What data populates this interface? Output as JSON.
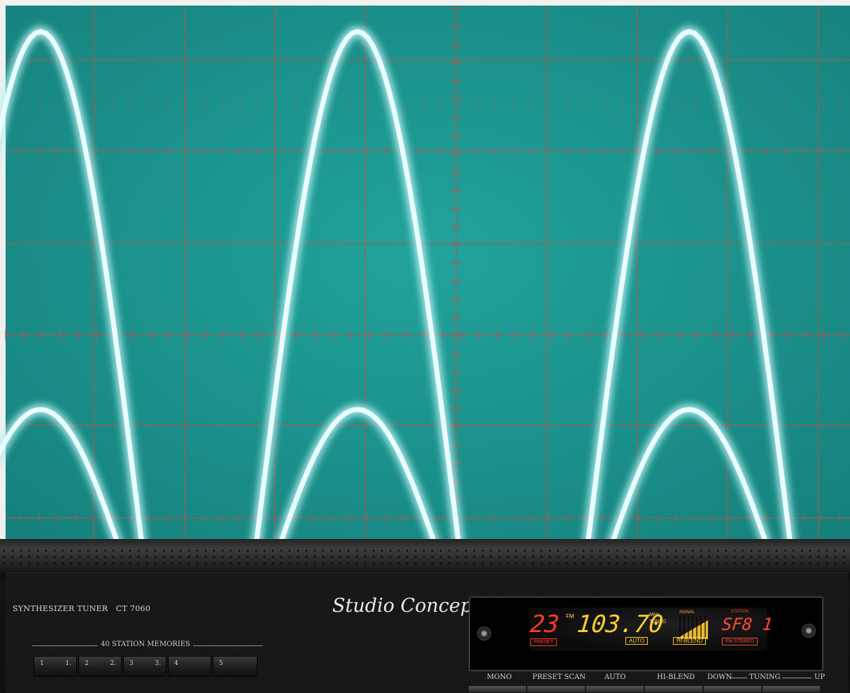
{
  "image": {
    "scope_colors": {
      "screen": "#1f9a93",
      "grid": "#c0504a",
      "trace": "#eafcff",
      "glow": "#b5f0f2"
    }
  },
  "tuner": {
    "model": "SYNTHESIZER TUNER   CT 7060",
    "brand": "Studio Concept",
    "memories_label": "40 STATION MEMORIES",
    "memory_buttons": [
      {
        "label_a": "1",
        "label_b": "1."
      },
      {
        "label_a": "2",
        "label_b": "2."
      },
      {
        "label_a": "3",
        "label_b": "3."
      },
      {
        "label_a": "4",
        "label_b": ""
      },
      {
        "label_a": "5",
        "label_b": ""
      }
    ],
    "display": {
      "preset_number": "23",
      "band": "FM",
      "frequency": "103.70",
      "unit": "MHz",
      "tuned": "TUNED",
      "signal_label": "SIGNAL",
      "station_label": "STATION",
      "station_name": "SF8 1",
      "preset_tag": "PRESET",
      "auto_tag": "AUTO",
      "hiblend_tag": "HI-BLEND",
      "stereo_tag": "FM STEREO"
    },
    "buttons": {
      "mono": "MONO",
      "preset_scan": "PRESET SCAN",
      "auto": "AUTO",
      "hi_blend": "HI-BLEND",
      "down": "DOWN",
      "tuning": "TUNING",
      "up": "UP"
    }
  }
}
